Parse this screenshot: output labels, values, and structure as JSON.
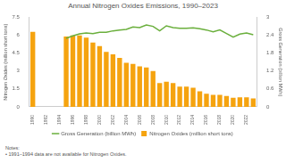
{
  "chart_data": {
    "type": "bar",
    "title": "Annual Nitrogen Oxides Emissions, 1990–2023",
    "categories": [
      "1990",
      null,
      "1992",
      null,
      "1994",
      null,
      "1996",
      null,
      "1998",
      null,
      "2000",
      null,
      "2002",
      null,
      "2004",
      null,
      "2006",
      null,
      "2008",
      null,
      "2010",
      null,
      "2012",
      null,
      "2014",
      null,
      "2016",
      null,
      "2018",
      null,
      "2020",
      null,
      "2022",
      null
    ],
    "series": [
      {
        "name": "Nitrogen Oxides (million short tons)",
        "type": "bar",
        "color": "#f5a30f",
        "values": [
          6.3,
          null,
          null,
          null,
          null,
          5.9,
          6.0,
          6.0,
          5.8,
          5.4,
          5.1,
          4.6,
          4.4,
          4.1,
          3.7,
          3.6,
          3.4,
          3.3,
          3.0,
          2.0,
          2.1,
          2.0,
          1.7,
          1.7,
          1.6,
          1.3,
          1.1,
          1.0,
          1.0,
          0.9,
          0.75,
          0.8,
          0.8,
          0.7
        ]
      },
      {
        "name": "Gross Generation (billion MWh)",
        "type": "line",
        "color": "#6aaf3c",
        "axis": "y2",
        "values": [
          null,
          null,
          null,
          null,
          null,
          2.3,
          2.38,
          2.45,
          2.48,
          2.46,
          2.5,
          2.5,
          2.55,
          2.58,
          2.6,
          2.68,
          2.66,
          2.75,
          2.7,
          2.55,
          2.72,
          2.66,
          2.64,
          2.64,
          2.65,
          2.62,
          2.58,
          2.52,
          2.58,
          2.46,
          2.34,
          2.44,
          2.48,
          2.42
        ]
      }
    ],
    "y_label": "Nitrogen Oxides (million short tons)",
    "y2_label": "Gross Generation (billion MWh)",
    "ylim": [
      0,
      7.5
    ],
    "yticks": [
      0,
      1.5,
      3,
      4.5,
      6,
      7.5
    ],
    "y2lim": [
      0,
      3
    ],
    "y2ticks": [
      0,
      0.6,
      1.2,
      1.8,
      2.4,
      3
    ],
    "grid": false,
    "legend": "bottom",
    "notes": [
      "Notes:",
      "• 1991–1994 data are not available for Nitrogen Oxides."
    ]
  }
}
